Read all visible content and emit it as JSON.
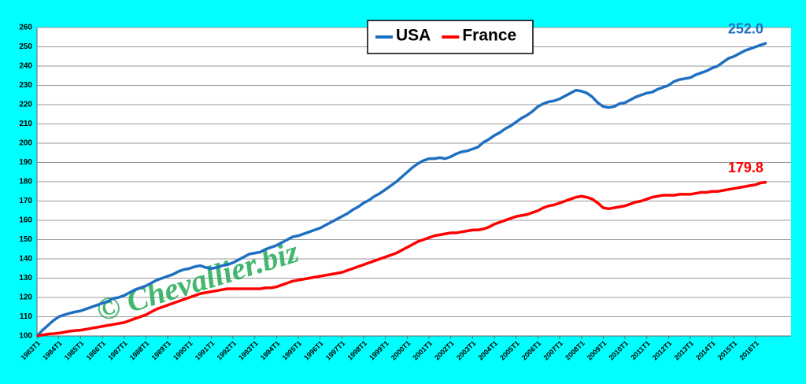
{
  "chart_data": {
    "type": "line",
    "watermark": "© Chevallier.biz",
    "categories": [
      "1983T1",
      null,
      null,
      null,
      "1984T1",
      null,
      null,
      null,
      "1985T1",
      null,
      null,
      null,
      "1986T1",
      null,
      null,
      null,
      "1987T1",
      null,
      null,
      null,
      "1988T1",
      null,
      null,
      null,
      "1989T1",
      null,
      null,
      null,
      "1990T1",
      null,
      null,
      null,
      "1991T1",
      null,
      null,
      null,
      "1992T1",
      null,
      null,
      null,
      "1993T1",
      null,
      null,
      null,
      "1994T1",
      null,
      null,
      null,
      "1995T1",
      null,
      null,
      null,
      "1996T1",
      null,
      null,
      null,
      "1997T1",
      null,
      null,
      null,
      "1998T1",
      null,
      null,
      null,
      "1999T1",
      null,
      null,
      null,
      "2000T1",
      null,
      null,
      null,
      "2001T1",
      null,
      null,
      null,
      "2002T1",
      null,
      null,
      null,
      "2003T1",
      null,
      null,
      null,
      "2004T1",
      null,
      null,
      null,
      "2005T1",
      null,
      null,
      null,
      "2006T1",
      null,
      null,
      null,
      "2007T1",
      null,
      null,
      null,
      "2008T1",
      null,
      null,
      null,
      "2009T1",
      null,
      null,
      null,
      "2010T1",
      null,
      null,
      null,
      "2011T1",
      null,
      null,
      null,
      "2012T1",
      null,
      null,
      null,
      "2013T1",
      null,
      null,
      null,
      "2014T1",
      null,
      null,
      null,
      "2015T1",
      null,
      null,
      null,
      "2016T1",
      null,
      null
    ],
    "series": [
      {
        "name": "USA",
        "color": "#1f6fc0",
        "values": [
          100,
          103,
          105.5,
          108,
          110,
          111,
          111.8,
          112.5,
          113,
          114,
          115,
          116,
          117,
          118,
          119.5,
          120,
          121,
          122.5,
          124,
          125,
          126,
          127.5,
          129,
          130,
          131,
          132,
          133.5,
          134.5,
          135,
          136,
          136.5,
          135.5,
          135,
          135.5,
          136.5,
          137,
          138,
          139.5,
          141,
          142.5,
          143,
          143.5,
          145,
          146,
          147,
          148.5,
          150,
          151.5,
          152,
          153,
          154,
          155,
          156,
          157.5,
          159,
          160.5,
          162,
          163.5,
          165.5,
          167,
          169,
          170.5,
          172.5,
          174,
          176,
          178,
          180,
          182.5,
          185,
          187.5,
          189.5,
          191,
          192,
          192,
          192.5,
          192,
          193,
          194.5,
          195.5,
          196,
          197,
          198,
          200.5,
          202,
          204,
          205.5,
          207.5,
          209,
          211,
          213,
          214.5,
          216.5,
          219,
          220.5,
          221.5,
          222,
          223,
          224.5,
          226,
          227.5,
          227,
          226,
          224,
          221,
          219,
          218.5,
          219,
          220.5,
          221,
          222.5,
          224,
          225,
          226,
          226.5,
          228,
          229,
          230,
          232,
          233,
          233.5,
          234,
          235.5,
          236.5,
          237.5,
          239,
          240,
          242,
          244,
          245,
          246.5,
          248,
          249,
          250,
          251,
          252.0
        ],
        "value_labels": [
          null,
          null,
          null,
          null,
          null,
          null,
          null,
          null,
          null,
          null,
          null,
          null,
          null,
          null,
          null,
          null,
          null,
          null,
          null,
          null,
          null,
          null,
          null,
          null,
          null,
          null,
          null,
          null,
          null,
          null,
          null,
          null,
          null,
          null,
          null,
          null,
          null,
          null,
          null,
          null,
          null,
          null,
          null,
          null,
          null,
          null,
          null,
          null,
          null,
          null,
          null,
          null,
          null,
          null,
          null,
          null,
          null,
          null,
          null,
          null,
          null,
          null,
          null,
          null,
          null,
          null,
          null,
          null,
          null,
          null,
          null,
          null,
          null,
          null,
          null,
          null,
          null,
          null,
          null,
          null,
          null,
          null,
          null,
          null,
          null,
          null,
          null,
          null,
          null,
          null,
          null,
          null,
          null,
          null,
          null,
          null,
          null,
          null,
          null,
          null,
          null,
          null,
          null,
          null,
          null,
          null,
          null,
          null,
          null,
          null,
          null,
          null,
          null,
          null,
          null,
          null,
          null,
          null,
          null,
          null,
          null,
          null,
          null,
          null,
          null,
          null,
          null,
          null,
          null,
          null,
          null,
          null,
          null,
          null,
          "252.0"
        ]
      },
      {
        "name": "France",
        "color": "#ff0000",
        "values": [
          100,
          100.5,
          101,
          101.2,
          101.5,
          102,
          102.5,
          102.8,
          103,
          103.5,
          104,
          104.5,
          105,
          105.5,
          106,
          106.5,
          107,
          108,
          109,
          110,
          111,
          112.5,
          114,
          115,
          116,
          117,
          118,
          119,
          120,
          121,
          122,
          122.5,
          123,
          123.5,
          124,
          124.5,
          124.5,
          124.5,
          124.5,
          124.5,
          124.5,
          124.5,
          125,
          125,
          125.5,
          126.5,
          127.5,
          128.5,
          129,
          129.5,
          130,
          130.5,
          131,
          131.5,
          132,
          132.5,
          133,
          134,
          135,
          136,
          137,
          138,
          139,
          140,
          141,
          142,
          143,
          144.5,
          146,
          147.5,
          149,
          150,
          151,
          152,
          152.5,
          153,
          153.5,
          153.5,
          154,
          154.5,
          155,
          155,
          155.5,
          156.5,
          158,
          159,
          160,
          161,
          162,
          162.5,
          163,
          164,
          165,
          166.5,
          167.5,
          168,
          169,
          170,
          171,
          172,
          172.5,
          172,
          171,
          169,
          166.5,
          166,
          166.5,
          167,
          167.5,
          168.5,
          169.5,
          170,
          171,
          172,
          172.5,
          173,
          173,
          173,
          173.5,
          173.5,
          173.5,
          174,
          174.5,
          174.5,
          175,
          175,
          175.5,
          176,
          176.5,
          177,
          177.5,
          178,
          178.5,
          179.5,
          179.8
        ],
        "value_labels": [
          null,
          null,
          null,
          null,
          null,
          null,
          null,
          null,
          null,
          null,
          null,
          null,
          null,
          null,
          null,
          null,
          null,
          null,
          null,
          null,
          null,
          null,
          null,
          null,
          null,
          null,
          null,
          null,
          null,
          null,
          null,
          null,
          null,
          null,
          null,
          null,
          null,
          null,
          null,
          null,
          null,
          null,
          null,
          null,
          null,
          null,
          null,
          null,
          null,
          null,
          null,
          null,
          null,
          null,
          null,
          null,
          null,
          null,
          null,
          null,
          null,
          null,
          null,
          null,
          null,
          null,
          null,
          null,
          null,
          null,
          null,
          null,
          null,
          null,
          null,
          null,
          null,
          null,
          null,
          null,
          null,
          null,
          null,
          null,
          null,
          null,
          null,
          null,
          null,
          null,
          null,
          null,
          null,
          null,
          null,
          null,
          null,
          null,
          null,
          null,
          null,
          null,
          null,
          null,
          null,
          null,
          null,
          null,
          null,
          null,
          null,
          null,
          null,
          null,
          null,
          null,
          null,
          null,
          null,
          null,
          null,
          null,
          null,
          null,
          null,
          null,
          null,
          null,
          null,
          null,
          null,
          null,
          null,
          null,
          "179.8"
        ]
      }
    ],
    "ylim": [
      100,
      260
    ],
    "yticks": [
      100,
      110,
      120,
      130,
      140,
      150,
      160,
      170,
      180,
      190,
      200,
      210,
      220,
      230,
      240,
      250,
      260
    ],
    "grid": true
  }
}
